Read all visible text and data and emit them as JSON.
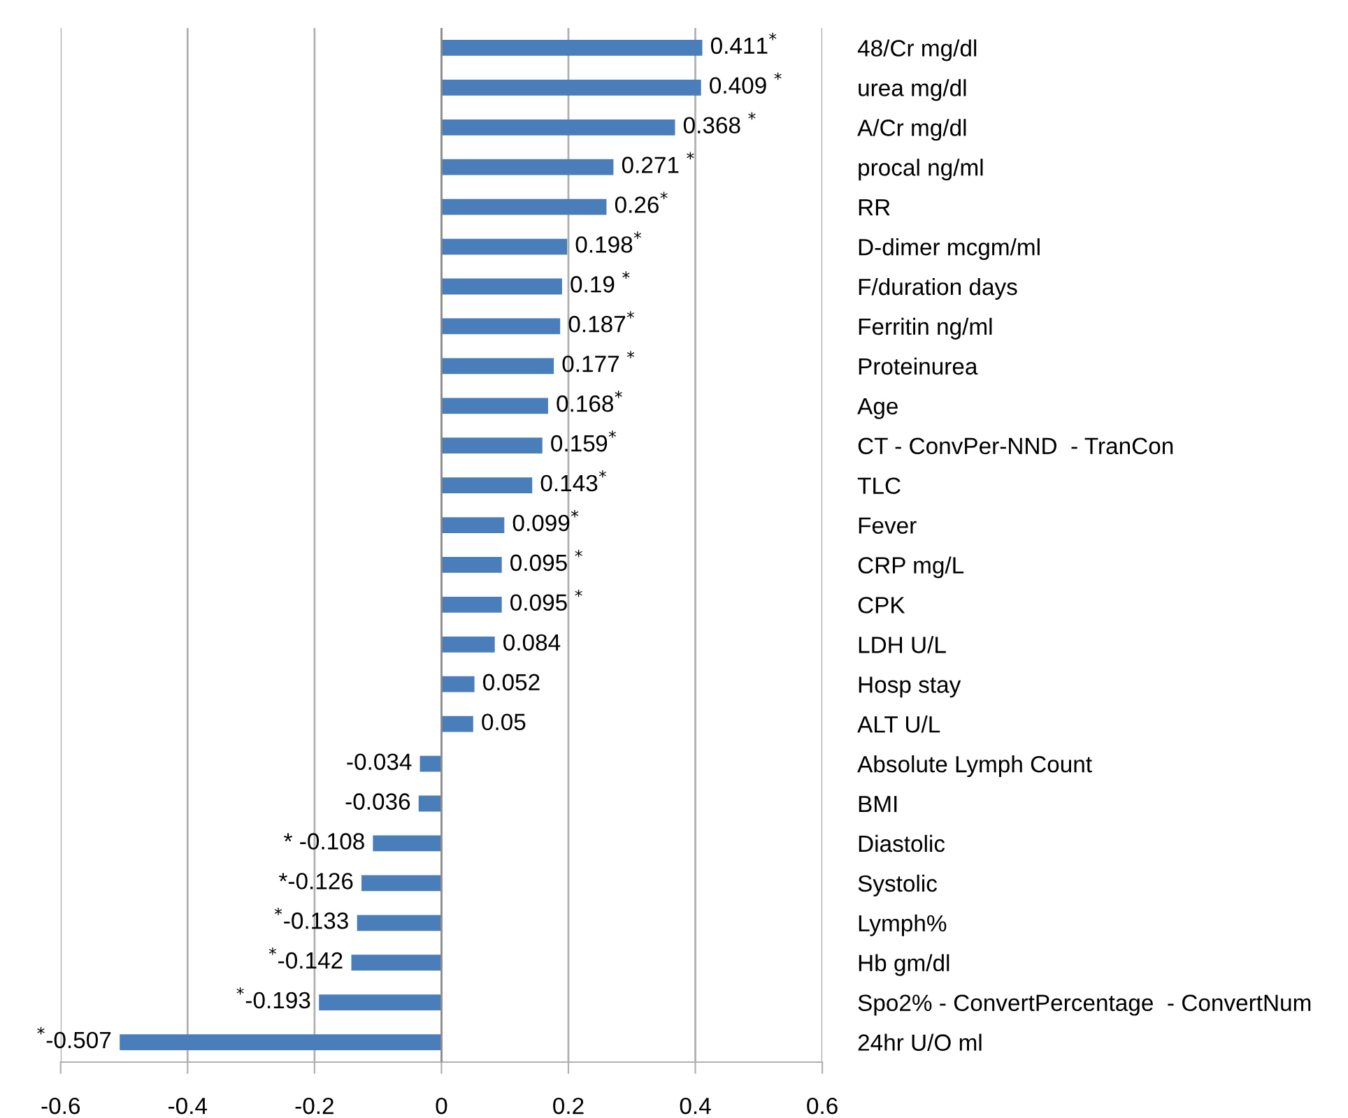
{
  "chart_data": {
    "type": "bar",
    "orientation": "horizontal",
    "categories": [
      "48/Cr mg/dl",
      "urea mg/dl",
      "A/Cr mg/dl",
      "procal ng/ml",
      "RR",
      "D-dimer mcgm/ml",
      "F/duration days",
      "Ferritin ng/ml",
      "Proteinurea",
      "Age",
      "CT - ConvPer-NND  - TranCon",
      "TLC",
      "Fever",
      "CRP mg/L",
      "CPK",
      "LDH U/L",
      "Hosp stay",
      "ALT U/L",
      "Absolute Lymph Count",
      "BMI",
      "Diastolic",
      "Systolic",
      "Lymph%",
      "Hb gm/dl",
      "Spo2% - ConvertPercentage  - ConvertNum",
      "24hr U/O ml"
    ],
    "values": [
      0.411,
      0.409,
      0.368,
      0.271,
      0.26,
      0.198,
      0.19,
      0.187,
      0.177,
      0.168,
      0.159,
      0.143,
      0.099,
      0.095,
      0.095,
      0.084,
      0.052,
      0.05,
      -0.034,
      -0.036,
      -0.108,
      -0.126,
      -0.133,
      -0.142,
      -0.193,
      -0.507
    ],
    "value_labels": [
      "0.411$^{*}$",
      "0.409 $^{*}$",
      "0.368 $^{*}$",
      "0.271 $^{*}$",
      "0.26$^{*}$",
      "0.198$^{*}$",
      "0.19 $^{*}$",
      "0.187$^{*}$",
      "0.177 $^{*}$",
      "0.168$^{*}$",
      "0.159$^{*}$",
      "0.143$^{*}$",
      "0.099$^{*}$",
      "0.095 $^{*}$",
      "0.095 $^{*}$",
      "0.084",
      "0.052",
      "0.05",
      "-0.034",
      "-0.036",
      "* -0.108",
      "*-0.126",
      "$^{*}$-0.133",
      "$^{*}$-0.142",
      "$^{*}$-0.193",
      "$^{*}$-0.507"
    ],
    "color": "#4a7ebb",
    "xlim": [
      -0.6,
      0.6
    ],
    "xticks": [
      -0.6,
      -0.4,
      -0.2,
      0,
      0.2,
      0.4,
      0.6
    ],
    "grid": "x"
  }
}
